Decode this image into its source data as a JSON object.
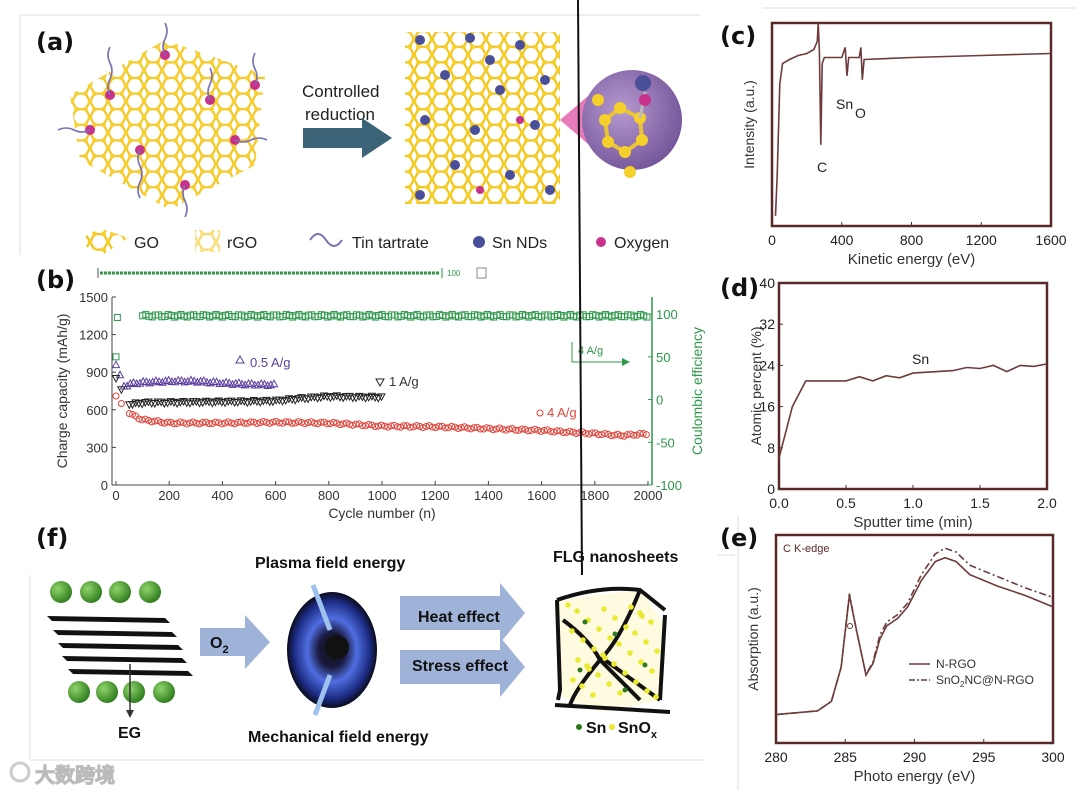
{
  "panels": {
    "a": "(a)",
    "b": "(b)",
    "c": "(c)",
    "d": "(d)",
    "e": "(e)",
    "f": "(f)"
  },
  "panel_a": {
    "arrow_label_1": "Controlled",
    "arrow_label_2": "reduction",
    "legend": [
      "GO",
      "rGO",
      "Tin tartrate",
      "Sn NDs",
      "Oxygen"
    ],
    "colors": {
      "carbon": "#f2c21b",
      "sn": "#4a4f9a",
      "oxygen": "#c8328a",
      "tartrate": "#7a6fb0",
      "arrow": "#3c6478",
      "zoom": "#8b6cb0"
    }
  },
  "panel_b_top_strip": {
    "label": "100"
  },
  "panel_f": {
    "plasma": "Plasma field energy",
    "mechanical": "Mechanical field energy",
    "o2": "O",
    "o2_sub": "2",
    "heat": "Heat effect",
    "stress": "Stress effect",
    "eg": "EG",
    "flg": "FLG nanosheets",
    "sn": "Sn",
    "snox": "SnO",
    "snox_sub": "x"
  },
  "watermark": "大数跨境",
  "chart_data": [
    {
      "id": "b",
      "type": "scatter",
      "xlabel": "Cycle number (n)",
      "ylabel": "Charge capacity (mAh/g)",
      "y2label": "Coulombic efficiency",
      "xlim": [
        0,
        2000
      ],
      "ylim": [
        0,
        1500
      ],
      "y2lim": [
        -100,
        120
      ],
      "xticks": [
        "0",
        "200",
        "400",
        "600",
        "800",
        "1000",
        "1200",
        "1400",
        "1600",
        "1800",
        "2000"
      ],
      "yticks": [
        "0",
        "300",
        "600",
        "900",
        "1200",
        "1500"
      ],
      "y2ticks": [
        "-100",
        "-50",
        "0",
        "50",
        "100"
      ],
      "series": [
        {
          "name": "0.5 A/g",
          "color": "#5b3fa0",
          "marker": "triangle-up",
          "axis": "left",
          "points": [
            [
              0,
              960
            ],
            [
              15,
              880
            ],
            [
              30,
              790
            ],
            [
              60,
              810
            ],
            [
              100,
              820
            ],
            [
              200,
              830
            ],
            [
              300,
              830
            ],
            [
              400,
              815
            ],
            [
              500,
              805
            ],
            [
              600,
              800
            ]
          ]
        },
        {
          "name": "1 A/g",
          "color": "#222222",
          "marker": "triangle-down",
          "axis": "left",
          "points": [
            [
              0,
              850
            ],
            [
              20,
              760
            ],
            [
              50,
              640
            ],
            [
              100,
              655
            ],
            [
              300,
              660
            ],
            [
              500,
              665
            ],
            [
              600,
              670
            ],
            [
              700,
              690
            ],
            [
              800,
              705
            ],
            [
              900,
              700
            ],
            [
              1000,
              700
            ]
          ]
        },
        {
          "name": "4 A/g",
          "color": "#e0443a",
          "marker": "circle",
          "axis": "left",
          "points": [
            [
              0,
              710
            ],
            [
              20,
              650
            ],
            [
              50,
              570
            ],
            [
              100,
              520
            ],
            [
              200,
              495
            ],
            [
              400,
              495
            ],
            [
              600,
              500
            ],
            [
              800,
              495
            ],
            [
              1000,
              470
            ],
            [
              1200,
              465
            ],
            [
              1400,
              450
            ],
            [
              1600,
              435
            ],
            [
              1800,
              410
            ],
            [
              1900,
              395
            ],
            [
              2000,
              410
            ]
          ]
        },
        {
          "name": "Coulombic efficiency",
          "color": "#2e9a4a",
          "marker": "square",
          "axis": "right",
          "points": [
            [
              0,
              50
            ],
            [
              5,
              96
            ],
            [
              100,
              98
            ],
            [
              500,
              98
            ],
            [
              1000,
              98
            ],
            [
              1500,
              98
            ],
            [
              2000,
              98
            ]
          ]
        }
      ],
      "annotations": [
        "4 A/g"
      ]
    },
    {
      "id": "c",
      "type": "line",
      "xlabel": "Kinetic energy (eV)",
      "ylabel": "Intensity (a.u.)",
      "xlim": [
        0,
        1600
      ],
      "ylim": [
        0,
        100
      ],
      "xticks": [
        "0",
        "400",
        "800",
        "1200",
        "1600"
      ],
      "series": [
        {
          "name": "spectrum",
          "color": "#6e3b3b",
          "points": [
            [
              20,
              5
            ],
            [
              30,
              25
            ],
            [
              45,
              70
            ],
            [
              60,
              80
            ],
            [
              100,
              82
            ],
            [
              150,
              84
            ],
            [
              200,
              85
            ],
            [
              240,
              87
            ],
            [
              260,
              91
            ],
            [
              265,
              100
            ],
            [
              272,
              86
            ],
            [
              280,
              40
            ],
            [
              288,
              80
            ],
            [
              300,
              83
            ],
            [
              400,
              83
            ],
            [
              420,
              88
            ],
            [
              430,
              74
            ],
            [
              440,
              83
            ],
            [
              500,
              83
            ],
            [
              510,
              88
            ],
            [
              518,
              72
            ],
            [
              528,
              82
            ],
            [
              800,
              83
            ],
            [
              1200,
              84
            ],
            [
              1600,
              85
            ]
          ]
        }
      ],
      "annotations": [
        "C",
        "Sn",
        "O"
      ]
    },
    {
      "id": "d",
      "type": "line",
      "xlabel": "Sputter time (min)",
      "ylabel": "Atomic percent (%)",
      "xlim": [
        0,
        2
      ],
      "ylim": [
        0,
        40
      ],
      "xticks": [
        "0.0",
        "0.5",
        "1.0",
        "1.5",
        "2.0"
      ],
      "yticks": [
        "0",
        "8",
        "16",
        "24",
        "32",
        "40"
      ],
      "series": [
        {
          "name": "Sn",
          "color": "#6e3b3b",
          "points": [
            [
              0,
              6
            ],
            [
              0.1,
              16
            ],
            [
              0.2,
              21
            ],
            [
              0.5,
              21
            ],
            [
              0.6,
              21.8
            ],
            [
              0.7,
              21
            ],
            [
              0.8,
              22
            ],
            [
              0.9,
              21.6
            ],
            [
              1.0,
              22.5
            ],
            [
              1.3,
              23
            ],
            [
              1.4,
              23.6
            ],
            [
              1.5,
              23.4
            ],
            [
              1.6,
              24
            ],
            [
              1.7,
              22.8
            ],
            [
              1.8,
              24
            ],
            [
              1.9,
              23.8
            ],
            [
              2.0,
              24.3
            ]
          ]
        }
      ],
      "annotations": [
        "Sn"
      ]
    },
    {
      "id": "e",
      "type": "line",
      "title": "C K-edge",
      "xlabel": "Photo energy (eV)",
      "ylabel": "Absorption (a.u.)",
      "xlim": [
        280,
        300
      ],
      "ylim": [
        0,
        110
      ],
      "xticks": [
        "280",
        "285",
        "290",
        "295",
        "300"
      ],
      "legend_position": "right-middle",
      "series": [
        {
          "name": "N-RGO",
          "color": "#6e3b3b",
          "dash": "solid",
          "points": [
            [
              280,
              15
            ],
            [
              283,
              17
            ],
            [
              284,
              22
            ],
            [
              284.7,
              40
            ],
            [
              285.3,
              78
            ],
            [
              285.8,
              60
            ],
            [
              286.5,
              36
            ],
            [
              287,
              42
            ],
            [
              287.5,
              55
            ],
            [
              288,
              62
            ],
            [
              288.8,
              66
            ],
            [
              289.5,
              72
            ],
            [
              290.5,
              86
            ],
            [
              291.5,
              96
            ],
            [
              292.2,
              98
            ],
            [
              293,
              96
            ],
            [
              294,
              89
            ],
            [
              296,
              83
            ],
            [
              298,
              78
            ],
            [
              300,
              72
            ]
          ]
        },
        {
          "name": "SnO2NC@N-RGO",
          "label_main": "SnO",
          "label_sub": "2",
          "label_rest": "NC@N-RGO",
          "color": "#6e3b3b",
          "dash": "dash-dot",
          "points": [
            [
              280,
              15
            ],
            [
              283,
              17
            ],
            [
              284,
              22
            ],
            [
              284.7,
              40
            ],
            [
              285.3,
              79
            ],
            [
              285.8,
              60
            ],
            [
              286.5,
              36
            ],
            [
              287,
              43
            ],
            [
              287.5,
              57
            ],
            [
              288,
              64
            ],
            [
              288.8,
              68
            ],
            [
              289.5,
              74
            ],
            [
              290.5,
              89
            ],
            [
              291.5,
              100
            ],
            [
              292.2,
              103
            ],
            [
              293,
              101
            ],
            [
              294,
              94
            ],
            [
              296,
              88
            ],
            [
              298,
              82
            ],
            [
              300,
              77
            ]
          ]
        }
      ]
    }
  ]
}
